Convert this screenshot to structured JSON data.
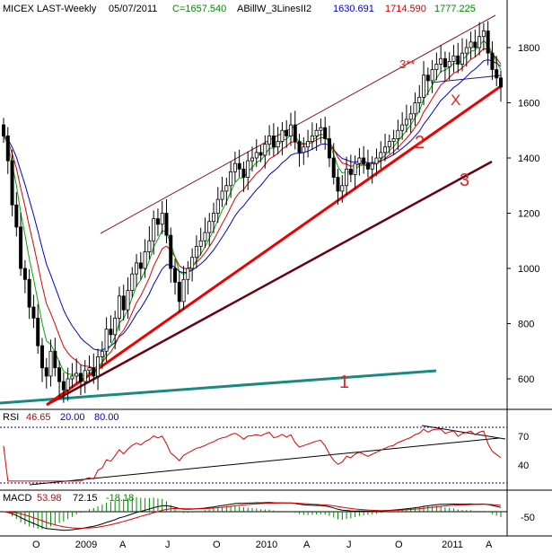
{
  "header": {
    "symbol": "MICEX LAST-Weekly",
    "date": "05/07/2011",
    "close": "C=1657.540",
    "indicator": "ABillW_3LinesII2",
    "line1": "1630.691",
    "line2": "1714.590",
    "line3": "1777.225"
  },
  "rsi_header": {
    "name": "RSI",
    "v1": "46.65",
    "v2": "20.00",
    "v3": "80.00"
  },
  "macd_header": {
    "name": "MACD",
    "v1": "53.98",
    "v2": "72.15",
    "v3": "-18.18"
  },
  "annotations": {
    "line1": "1",
    "line2": "2",
    "line3": "3",
    "channel": "3**",
    "x": "X"
  },
  "colors": {
    "background": "#ffffff",
    "candle": "#000000",
    "blue": "#0000cc",
    "red": "#dd0000",
    "green": "#00aa00",
    "teal": "#1a8a80",
    "darkred": "#6b0010",
    "trend_red": "#ee0000",
    "channel": "#8b1a1a",
    "label_red": "#dd2222",
    "dotted": "#000099"
  },
  "chart_data": [
    {
      "type": "candlestick",
      "title": "MICEX LAST-Weekly",
      "x_ticks": [
        "O",
        "2009",
        "A",
        "J",
        "O",
        "2010",
        "A",
        "J",
        "O",
        "2011",
        "A"
      ],
      "y_ticks": [
        600,
        800,
        1000,
        1200,
        1400,
        1600,
        1800
      ],
      "ylim": [
        500,
        1950
      ],
      "close_series": [
        1480,
        1390,
        1230,
        1150,
        1000,
        960,
        860,
        820,
        720,
        640,
        610,
        700,
        640,
        590,
        560,
        600,
        610,
        620,
        590,
        630,
        640,
        610,
        680,
        700,
        780,
        760,
        820,
        900,
        850,
        920,
        980,
        1020,
        1000,
        1060,
        1100,
        1180,
        1160,
        1200,
        1120,
        1000,
        950,
        880,
        960,
        1000,
        1040,
        1080,
        1100,
        1130,
        1170,
        1200,
        1250,
        1280,
        1300,
        1350,
        1380,
        1360,
        1330,
        1390,
        1400,
        1420,
        1410,
        1450,
        1480,
        1440,
        1460,
        1500,
        1480,
        1520,
        1460,
        1420,
        1440,
        1460,
        1480,
        1500,
        1510,
        1470,
        1400,
        1330,
        1280,
        1300,
        1360,
        1340,
        1380,
        1400,
        1380,
        1360,
        1380,
        1400,
        1420,
        1440,
        1460,
        1470,
        1500,
        1520,
        1540,
        1560,
        1600,
        1620,
        1700,
        1680,
        1720,
        1740,
        1760,
        1730,
        1750,
        1770,
        1740,
        1780,
        1800,
        1820,
        1800,
        1840,
        1860,
        1780,
        1720,
        1690,
        1657
      ],
      "lines": [
        {
          "name": "1630.691",
          "color": "#0000cc"
        },
        {
          "name": "1714.590",
          "color": "#dd0000"
        },
        {
          "name": "1777.225",
          "color": "#00aa00"
        }
      ]
    },
    {
      "type": "line",
      "title": "RSI",
      "y_ticks": [
        40,
        70
      ],
      "levels": [
        20,
        80
      ],
      "last_value": 46.65
    },
    {
      "type": "line",
      "title": "MACD",
      "y_ticks": [
        -50
      ],
      "last_values": [
        53.98,
        72.15,
        -18.18
      ]
    }
  ]
}
